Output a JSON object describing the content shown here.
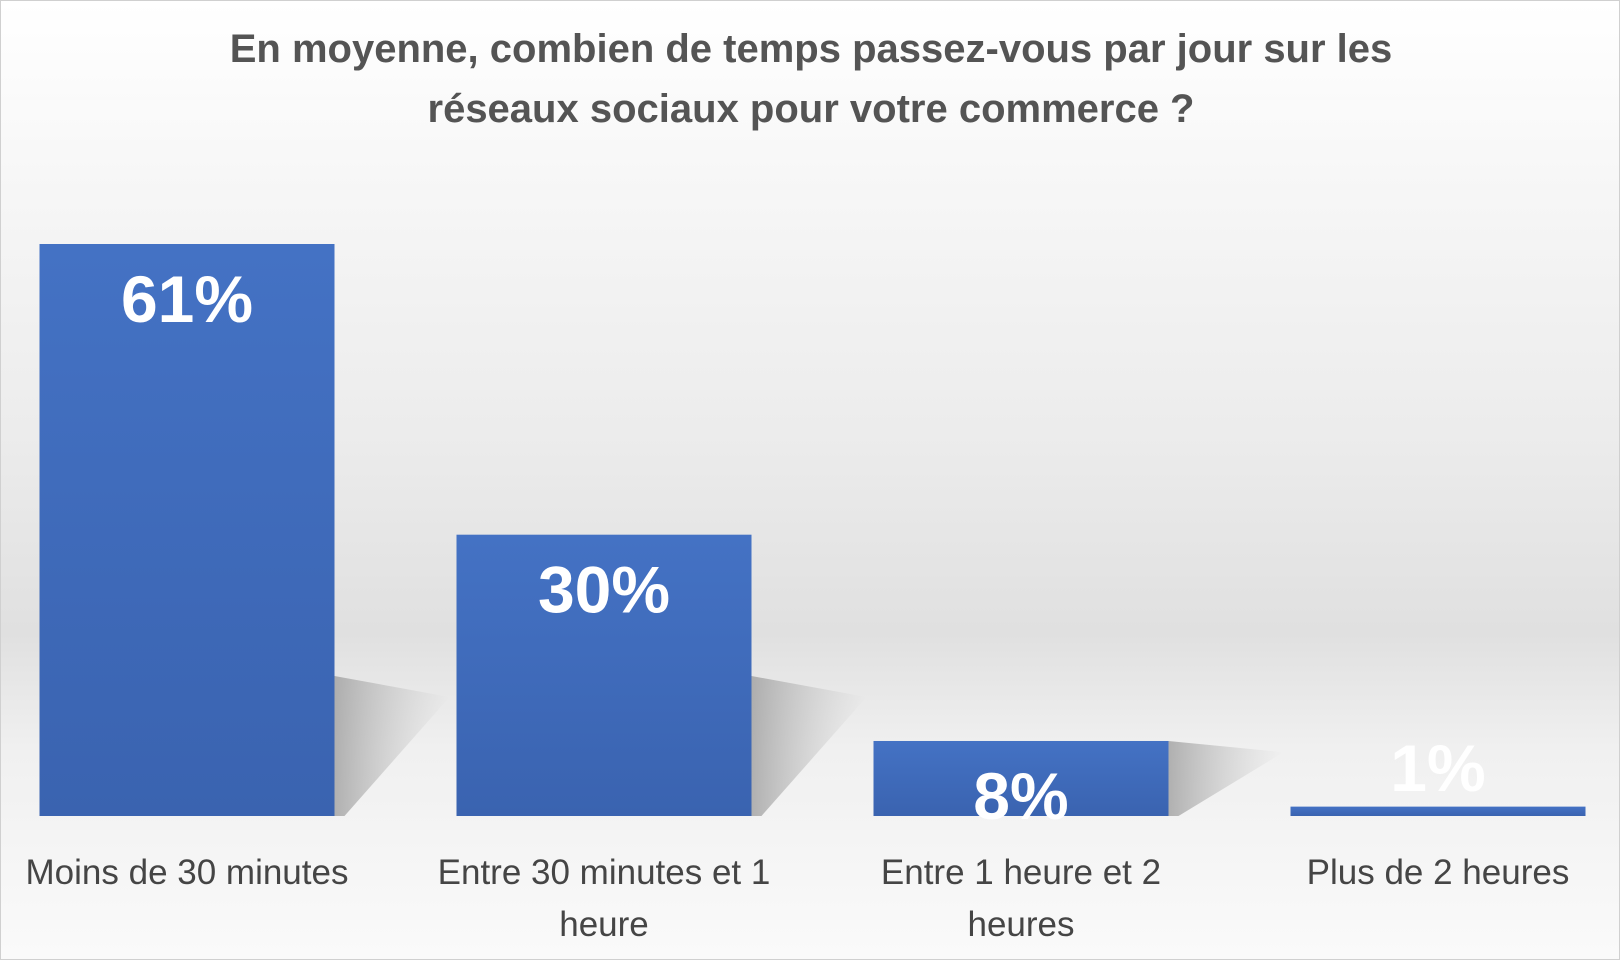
{
  "chart_data": {
    "type": "bar",
    "title": "En moyenne, combien de temps passez-vous par jour sur les réseaux sociaux pour votre commerce ?",
    "categories": [
      "Moins de 30 minutes",
      "Entre 30 minutes et 1 heure",
      "Entre 1 heure et 2 heures",
      "Plus de 2 heures"
    ],
    "category_lines": [
      [
        "Moins de 30 minutes"
      ],
      [
        "Entre 30 minutes et 1",
        "heure"
      ],
      [
        "Entre 1 heure et 2",
        "heures"
      ],
      [
        "Plus de 2 heures"
      ]
    ],
    "values": [
      61,
      30,
      8,
      1
    ],
    "data_labels": [
      "61%",
      "30%",
      "8%",
      "1%"
    ],
    "ylim": [
      0,
      61
    ],
    "grid": false,
    "legend": "none",
    "colors": {
      "bar": "#4472c4",
      "bar_dark": "#3a63b0",
      "title": "#545454",
      "category_text": "#454545",
      "data_label": "#ffffff"
    }
  }
}
